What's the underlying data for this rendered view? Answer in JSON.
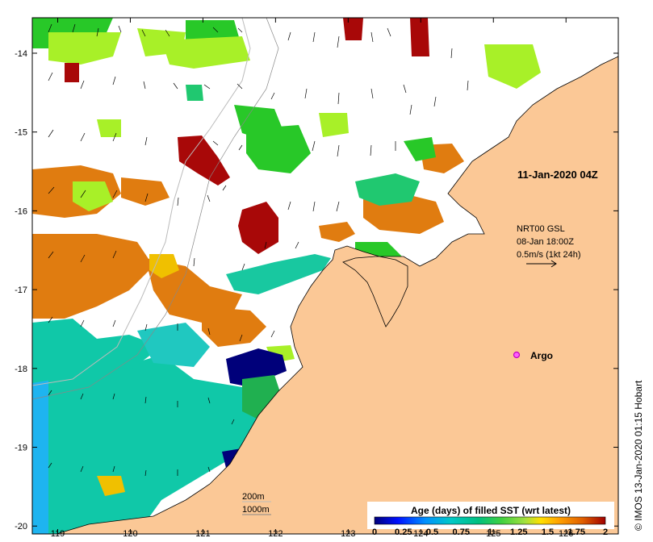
{
  "map": {
    "lon_ticks": [
      119,
      120,
      121,
      122,
      123,
      124,
      125,
      126
    ],
    "lat_ticks": [
      -14,
      -15,
      -16,
      -17,
      -18,
      -19,
      -20
    ],
    "lon_range": [
      118.65,
      126.72
    ],
    "lat_range": [
      -20.1,
      -13.55
    ],
    "land_color": "#fbc896",
    "ocean_color": "#ffffff"
  },
  "annotations": {
    "timestamp": "11-Jan-2020 04Z",
    "current_source": "NRT00 GSL",
    "current_time": "08-Jan 18:00Z",
    "current_scale": "0.5m/s (1kt 24h)",
    "argo_label": "Argo",
    "isobath_200": "200m",
    "isobath_1000": "1000m"
  },
  "legend": {
    "title": "Age (days) of filled SST (wrt latest)",
    "ticks": [
      "0",
      "0.25",
      "0.5",
      "0.75",
      "1",
      "1.25",
      "1.5",
      "1.75",
      "2"
    ],
    "colors": [
      "#00007a",
      "#0010ff",
      "#0090ff",
      "#00c8c8",
      "#00c080",
      "#40d040",
      "#a0e040",
      "#ffe000",
      "#ffa000",
      "#e06000",
      "#a00000"
    ]
  },
  "credit": "© IMOS 13-Jan-2020 01:15 Hobart"
}
